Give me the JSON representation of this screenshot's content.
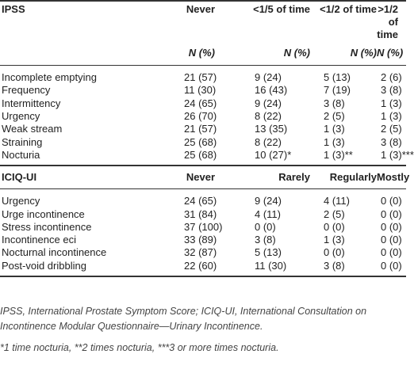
{
  "ipss": {
    "header": [
      "IPSS",
      "Never",
      "<1/5 of time",
      "<1/2 of time",
      ">1/2 of time"
    ],
    "subheader": [
      "N (%)",
      "N (%)",
      "N (%)",
      "N (%)"
    ],
    "rows": [
      [
        "Incomplete emptying",
        "21 (57)",
        "9 (24)",
        "5 (13)",
        "2 (6)"
      ],
      [
        "Frequency",
        "11 (30)",
        "16 (43)",
        "7 (19)",
        "3 (8)"
      ],
      [
        "Intermittency",
        "24 (65)",
        "9 (24)",
        "3 (8)",
        "1 (3)"
      ],
      [
        "Urgency",
        "26 (70)",
        "8 (22)",
        "2 (5)",
        "1 (3)"
      ],
      [
        "Weak stream",
        "21 (57)",
        "13 (35)",
        "1 (3)",
        "2 (5)"
      ],
      [
        "Straining",
        "25 (68)",
        "8 (22)",
        "1 (3)",
        "3 (8)"
      ],
      [
        "Nocturia",
        "25 (68)",
        "10 (27)*",
        "1 (3)**",
        "1 (3)***"
      ]
    ]
  },
  "iciq": {
    "header": [
      "ICIQ-UI",
      "Never",
      "Rarely",
      "Regularly",
      "Mostly"
    ],
    "rows": [
      [
        "Urgency",
        "24 (65)",
        "9 (24)",
        "4 (11)",
        "0 (0)"
      ],
      [
        "Urge incontinence",
        "31 (84)",
        "4 (11)",
        "2 (5)",
        "0 (0)"
      ],
      [
        "Stress incontinence",
        "37 (100)",
        "0 (0)",
        "0 (0)",
        "0 (0)"
      ],
      [
        "Incontinence eci",
        "33 (89)",
        "3 (8)",
        "1 (3)",
        "0 (0)"
      ],
      [
        "Nocturnal incontinence",
        "32 (87)",
        "5 (13)",
        "0 (0)",
        "0 (0)"
      ],
      [
        "Post-void dribbling",
        "22 (60)",
        "11 (30)",
        "3 (8)",
        "0 (0)"
      ]
    ]
  },
  "footnotes": [
    "IPSS, International Prostate Symptom Score; ICIQ-UI, International Consultation on Incontinence Modular Questionnaire—Urinary Incontinence.",
    "*1 time nocturia, **2 times nocturia, ***3 or more times nocturia."
  ]
}
